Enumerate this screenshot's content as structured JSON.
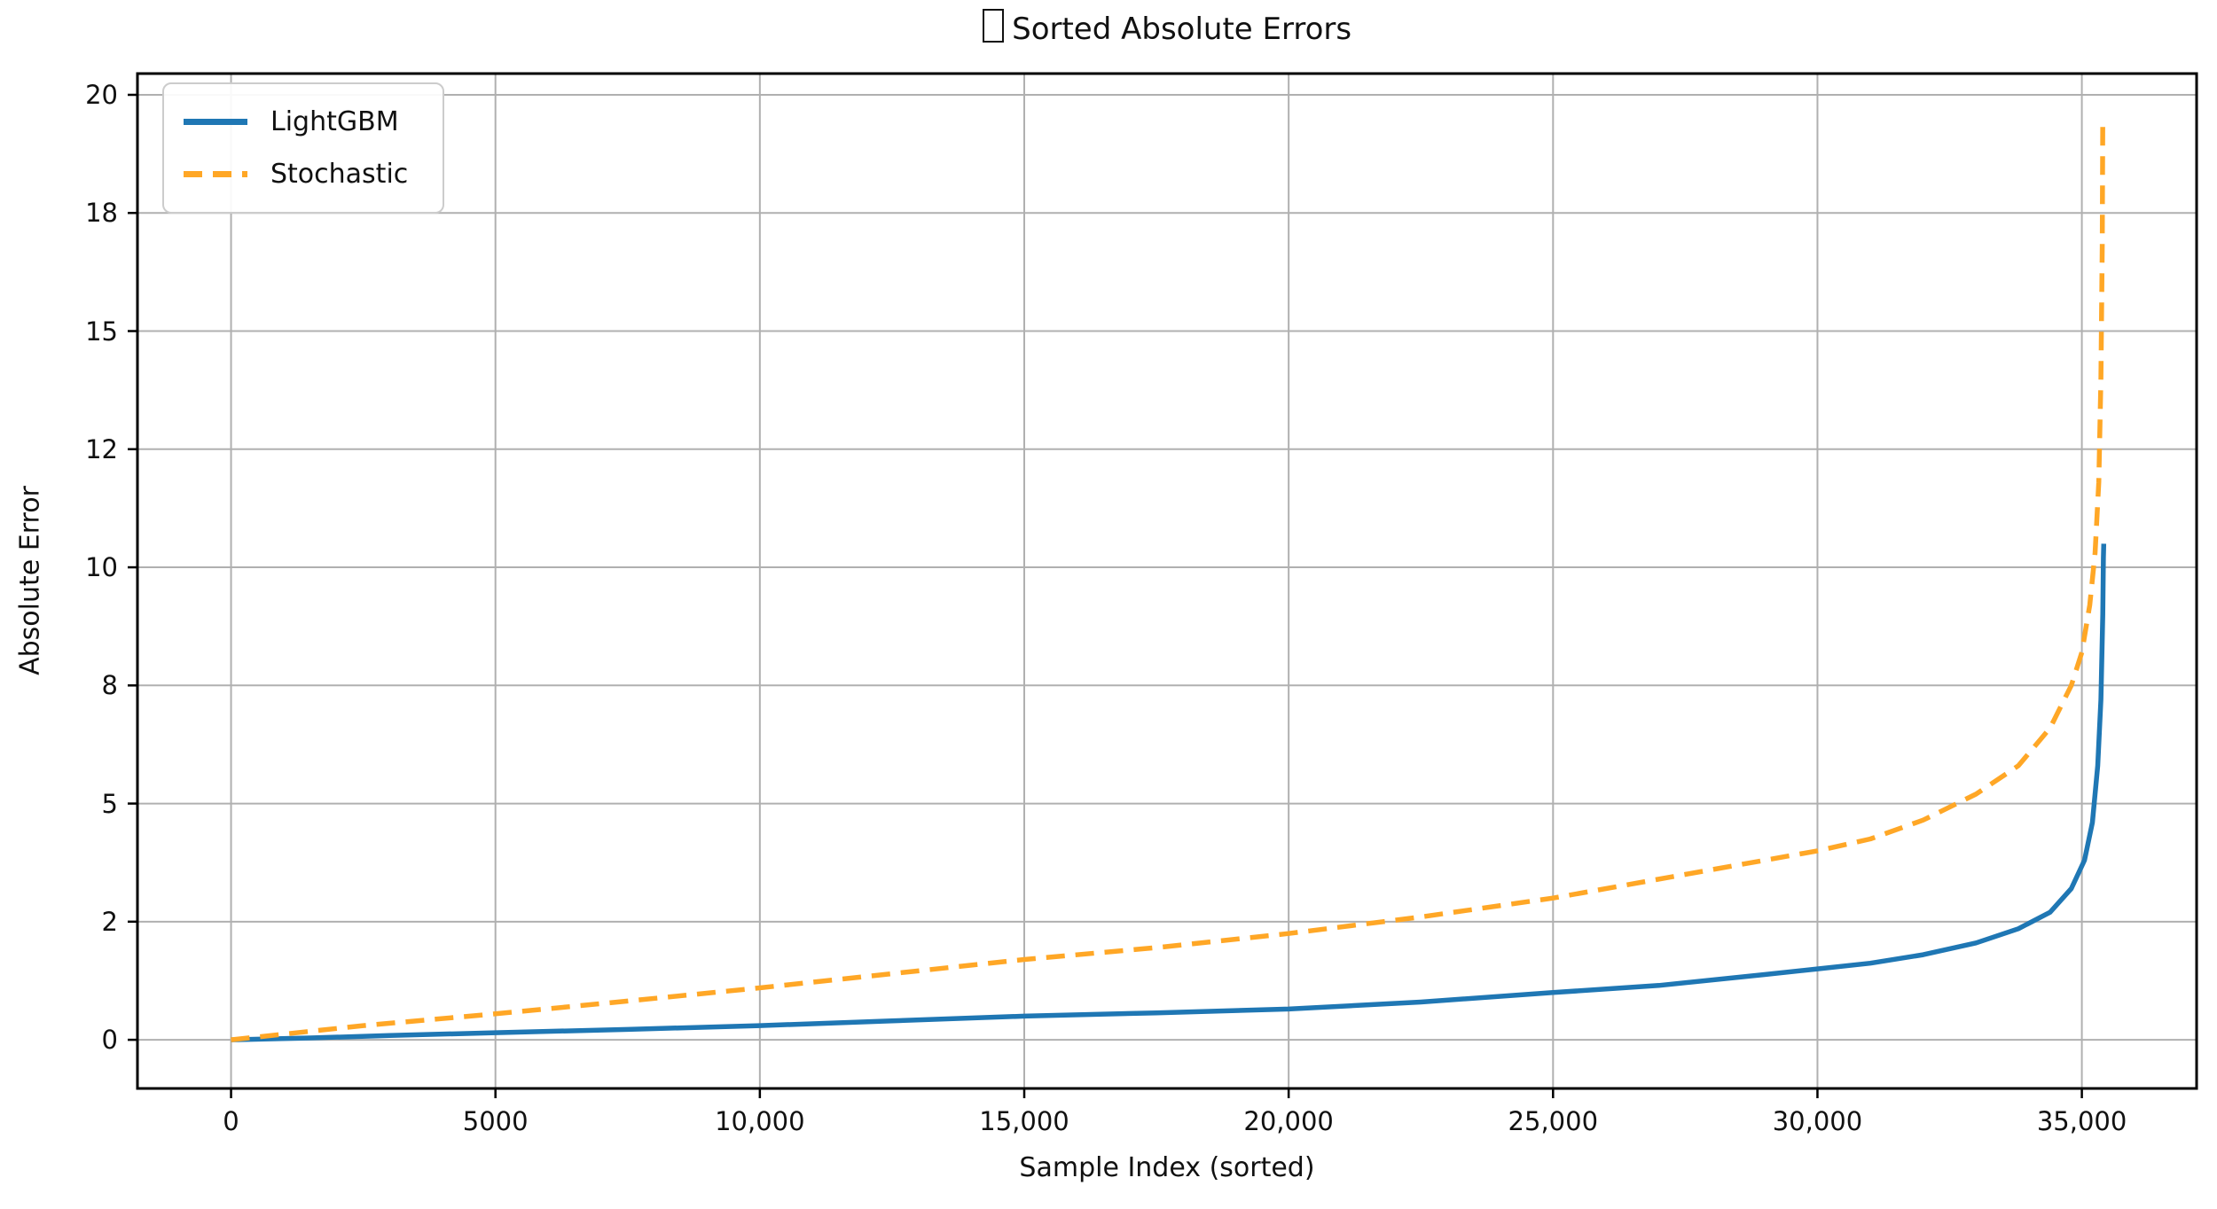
{
  "title": {
    "glyph": "□",
    "text": "Sorted Absolute Errors"
  },
  "colors": {
    "lightgbm_blue": "#1f77b4",
    "stochastic_orange": "#ffa726",
    "grid_gray": "#b0b0b0",
    "frame_black": "#000000",
    "legend_border": "#cccccc"
  },
  "legend": {
    "entries": [
      {
        "label": "LightGBM",
        "color": "#1f77b4",
        "style": "solid"
      },
      {
        "label": "Stochastic",
        "color": "#ffa726",
        "style": "dashed"
      }
    ]
  },
  "chart_data": {
    "type": "line",
    "title": "□ Sorted Absolute Errors",
    "xlabel": "Sample Index (sorted)",
    "ylabel": "Absolute Error",
    "xlim": [
      -1770,
      37170
    ],
    "ylim": [
      -1.03,
      20.45
    ],
    "grid": true,
    "legend_position": "upper left",
    "x_ticks": {
      "values": [
        0,
        5000,
        10000,
        15000,
        20000,
        25000,
        30000,
        35000
      ],
      "labels": [
        "0",
        "5000",
        "10,000",
        "15,000",
        "20,000",
        "25,000",
        "30,000",
        "35,000"
      ]
    },
    "y_ticks": {
      "values": [
        0,
        2.5,
        5,
        7.5,
        10,
        12.5,
        15,
        17.5,
        20
      ],
      "labels": [
        "0",
        "2",
        "5",
        "8",
        "10",
        "12",
        "15",
        "18",
        "20"
      ]
    },
    "series": [
      {
        "name": "LightGBM",
        "color": "#1f77b4",
        "style": "solid",
        "x": [
          0,
          1500,
          3000,
          5000,
          7500,
          10000,
          12500,
          15000,
          17500,
          20000,
          22500,
          25000,
          27000,
          29000,
          30000,
          31000,
          32000,
          33000,
          33800,
          34400,
          34800,
          35050,
          35200,
          35300,
          35360,
          35395,
          35408,
          35415
        ],
        "y": [
          0,
          0.04,
          0.09,
          0.15,
          0.22,
          0.3,
          0.4,
          0.5,
          0.57,
          0.65,
          0.8,
          1.0,
          1.15,
          1.38,
          1.5,
          1.62,
          1.8,
          2.05,
          2.35,
          2.7,
          3.2,
          3.8,
          4.6,
          5.8,
          7.2,
          9.0,
          10.2,
          10.5
        ]
      },
      {
        "name": "Stochastic",
        "color": "#ffa726",
        "style": "dashed",
        "x": [
          0,
          1000,
          2500,
          5000,
          7500,
          10000,
          12500,
          15000,
          17500,
          20000,
          22500,
          25000,
          27500,
          30000,
          31000,
          32000,
          33000,
          33800,
          34400,
          34800,
          35000,
          35150,
          35250,
          35320,
          35360,
          35385,
          35395
        ],
        "y": [
          0,
          0.12,
          0.3,
          0.55,
          0.82,
          1.1,
          1.4,
          1.7,
          1.95,
          2.25,
          2.6,
          3.0,
          3.5,
          4.0,
          4.25,
          4.65,
          5.2,
          5.8,
          6.6,
          7.5,
          8.2,
          9.2,
          10.3,
          11.8,
          14.0,
          16.8,
          19.5
        ]
      }
    ]
  }
}
